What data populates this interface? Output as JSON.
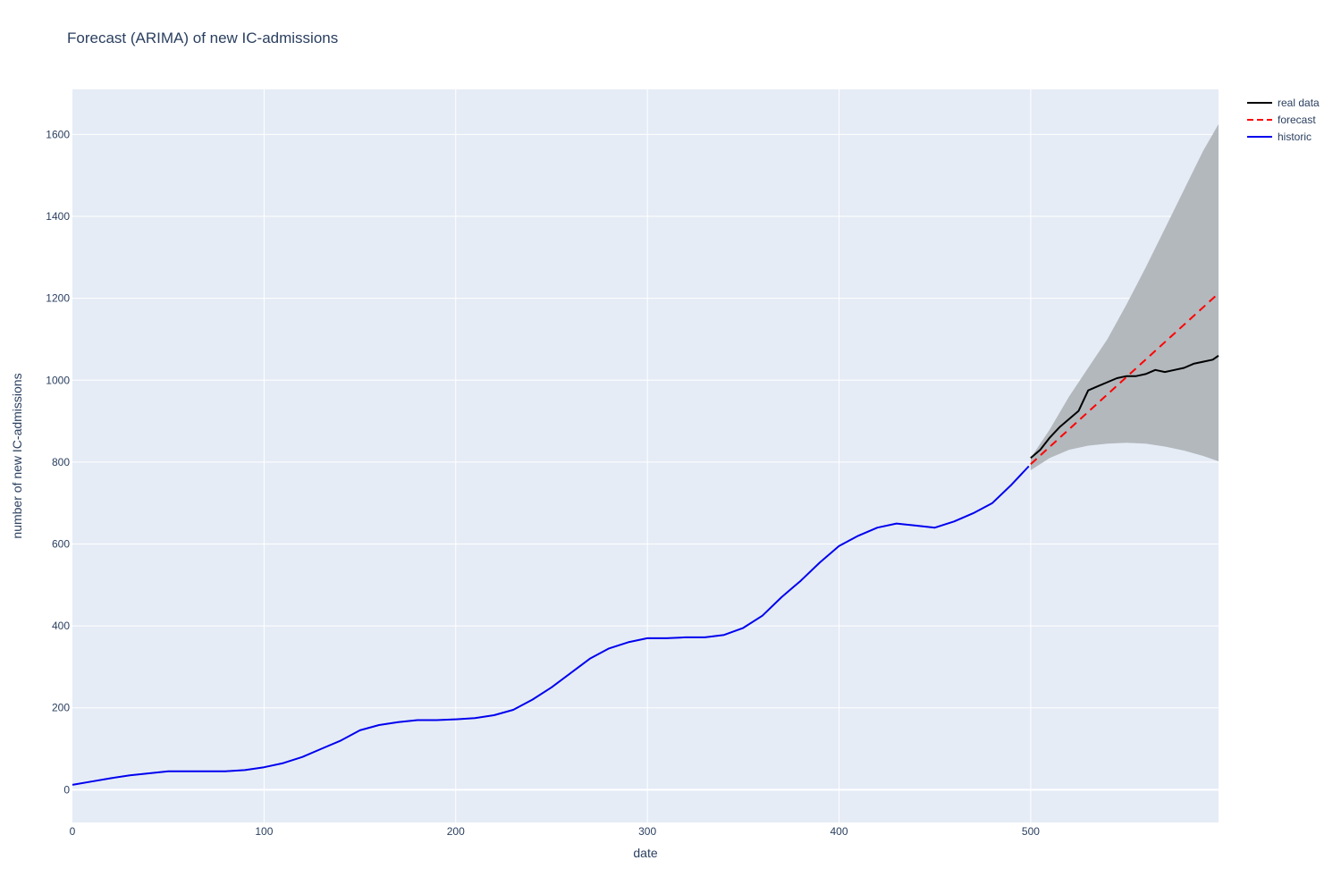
{
  "chart_data": {
    "type": "line",
    "title": "Forecast (ARIMA) of new IC-admissions",
    "xlabel": "date",
    "ylabel": "number of new IC-admissions",
    "xlim": [
      0,
      598
    ],
    "ylim": [
      -80,
      1710
    ],
    "x_ticks": [
      0,
      100,
      200,
      300,
      400,
      500
    ],
    "y_ticks": [
      0,
      200,
      400,
      600,
      800,
      1000,
      1200,
      1400,
      1600
    ],
    "grid": true,
    "legend_position": "top-right",
    "colors": {
      "plot_bg": "#e5ecf6",
      "grid": "#ffffff",
      "band": "#b3b8bd"
    },
    "series": [
      {
        "name": "real data",
        "color": "#000000",
        "dash": "solid",
        "x": [
          500,
          505,
          510,
          515,
          520,
          525,
          530,
          535,
          540,
          545,
          550,
          555,
          560,
          565,
          570,
          575,
          580,
          585,
          590,
          595,
          598
        ],
        "y": [
          810,
          830,
          860,
          885,
          905,
          925,
          975,
          985,
          995,
          1005,
          1010,
          1010,
          1015,
          1025,
          1020,
          1025,
          1030,
          1040,
          1045,
          1050,
          1060
        ]
      },
      {
        "name": "forecast",
        "color": "#ff0000",
        "dash": "dashed",
        "x": [
          500,
          598
        ],
        "y": [
          795,
          1212
        ]
      },
      {
        "name": "historic",
        "color": "#0000ee",
        "dash": "solid",
        "x": [
          0,
          10,
          20,
          30,
          40,
          50,
          60,
          70,
          80,
          90,
          100,
          110,
          120,
          130,
          140,
          150,
          160,
          170,
          180,
          190,
          200,
          210,
          220,
          230,
          240,
          250,
          260,
          270,
          280,
          290,
          300,
          310,
          320,
          330,
          340,
          350,
          360,
          370,
          380,
          390,
          400,
          410,
          420,
          430,
          440,
          450,
          460,
          470,
          480,
          490,
          499
        ],
        "y": [
          12,
          20,
          28,
          35,
          40,
          45,
          45,
          45,
          45,
          48,
          55,
          65,
          80,
          100,
          120,
          145,
          158,
          165,
          170,
          170,
          172,
          175,
          182,
          195,
          220,
          250,
          285,
          320,
          345,
          360,
          370,
          370,
          372,
          372,
          378,
          395,
          425,
          470,
          510,
          555,
          595,
          620,
          640,
          650,
          645,
          640,
          655,
          675,
          700,
          745,
          790
        ]
      }
    ],
    "confidence_band": {
      "x": [
        500,
        510,
        520,
        530,
        540,
        550,
        560,
        570,
        580,
        590,
        598
      ],
      "lower": [
        780,
        810,
        830,
        840,
        845,
        847,
        845,
        838,
        828,
        815,
        802
      ],
      "upper": [
        810,
        880,
        960,
        1030,
        1100,
        1185,
        1275,
        1370,
        1465,
        1560,
        1625
      ]
    }
  }
}
